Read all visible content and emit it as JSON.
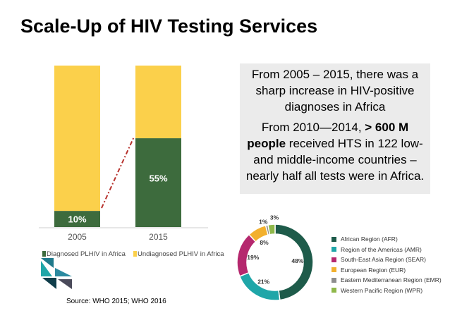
{
  "title": "Scale-Up of HIV Testing Services",
  "callout": {
    "p1": "From 2005 – 2015, there was a sharp increase in HIV-positive diagnoses in Africa",
    "p2_prefix": "From 2010—2014, ",
    "p2_bold1": "> 600 M",
    "p2_bold2": "people",
    "p2_rest": " received HTS in 122 low- and middle-income countries – nearly half all tests were in Africa."
  },
  "source": "Source: WHO 2015; WHO 2016",
  "colors": {
    "diagnosed": "#3d6b3d",
    "undiagnosed": "#fbd04b",
    "trend": "#b7312c",
    "afr": "#1e5b4a",
    "amr": "#1fa6a8",
    "sear": "#b5286e",
    "eur": "#f2b02e",
    "emr": "#8d8d8d",
    "wpr": "#8fb84a"
  },
  "chart_data": [
    {
      "type": "bar",
      "stacked": true,
      "categories": [
        "2005",
        "2015"
      ],
      "ylim": [
        0,
        100
      ],
      "series": [
        {
          "name": "Diagnosed PLHIV in Africa",
          "values": [
            10,
            55
          ],
          "labels": [
            "10%",
            "55%"
          ]
        },
        {
          "name": "Undiagnosed PLHIV in Africa",
          "values": [
            90,
            45
          ]
        }
      ],
      "legend": "bottom",
      "grid": false
    },
    {
      "type": "pie",
      "donut": true,
      "labels": [
        "African Region (AFR)",
        "Region of the Americas (AMR)",
        "South-East Asia Region (SEAR)",
        "European Region (EUR)",
        "Eastern Mediterranean Region (EMR)",
        "Western Pacific Region (WPR)"
      ],
      "values": [
        48,
        21,
        19,
        8,
        1,
        3
      ],
      "value_labels": [
        "48%",
        "21%",
        "19%",
        "8%",
        "1%",
        "3%"
      ],
      "legend": "right"
    }
  ]
}
